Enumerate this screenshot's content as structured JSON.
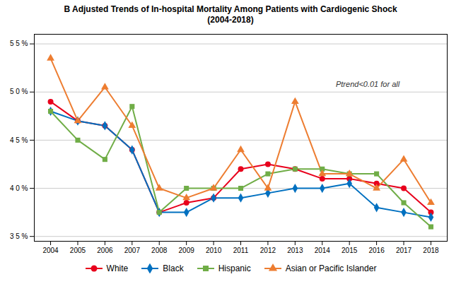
{
  "chart_data": {
    "type": "line",
    "title": "B  Adjusted Trends of In-hospital Mortality Among Patients with Cardiogenic Shock",
    "subtitle": "(2004-2018)",
    "x": [
      2004,
      2005,
      2006,
      2007,
      2008,
      2009,
      2010,
      2011,
      2012,
      2013,
      2014,
      2015,
      2016,
      2017,
      2018
    ],
    "series": [
      {
        "name": "White",
        "color": "#e8001c",
        "marker": "circle",
        "values": [
          49.0,
          47.0,
          46.5,
          44.0,
          37.5,
          38.5,
          39.0,
          42.0,
          42.5,
          42.0,
          41.0,
          41.0,
          40.5,
          40.0,
          37.5
        ]
      },
      {
        "name": "Black",
        "color": "#0070c0",
        "marker": "diamond",
        "values": [
          48.0,
          47.0,
          46.5,
          44.0,
          37.5,
          37.5,
          39.0,
          39.0,
          39.5,
          40.0,
          40.0,
          40.5,
          38.0,
          37.5,
          37.0
        ]
      },
      {
        "name": "Hispanic",
        "color": "#70ad47",
        "marker": "square",
        "values": [
          48.0,
          45.0,
          43.0,
          48.5,
          37.5,
          40.0,
          40.0,
          40.0,
          41.5,
          42.0,
          42.0,
          41.5,
          41.5,
          38.5,
          36.0
        ]
      },
      {
        "name": "Asian or Pacific Islander",
        "color": "#ed7d31",
        "marker": "triangle",
        "values": [
          53.5,
          47.0,
          50.5,
          46.5,
          40.0,
          39.0,
          40.0,
          44.0,
          40.0,
          49.0,
          41.5,
          41.5,
          40.0,
          43.0,
          38.5
        ]
      }
    ],
    "xlim": [
      2003.4,
      2018.6
    ],
    "xticks": [
      2004,
      2005,
      2006,
      2007,
      2008,
      2009,
      2010,
      2011,
      2012,
      2013,
      2014,
      2015,
      2016,
      2017,
      2018
    ],
    "ylim": [
      34.5,
      56
    ],
    "yticks": [
      {
        "value": 35,
        "label": "3 5 %"
      },
      {
        "value": 40,
        "label": "4 0 %"
      },
      {
        "value": 45,
        "label": "4 5 %"
      },
      {
        "value": 50,
        "label": "5 0 %"
      },
      {
        "value": 55,
        "label": "5 5 %"
      }
    ],
    "annotations": [
      {
        "text": "Ptrend<0.01 for all",
        "x": 2014.5,
        "y": 50.8
      }
    ],
    "grid": true,
    "legend": "bottom"
  }
}
